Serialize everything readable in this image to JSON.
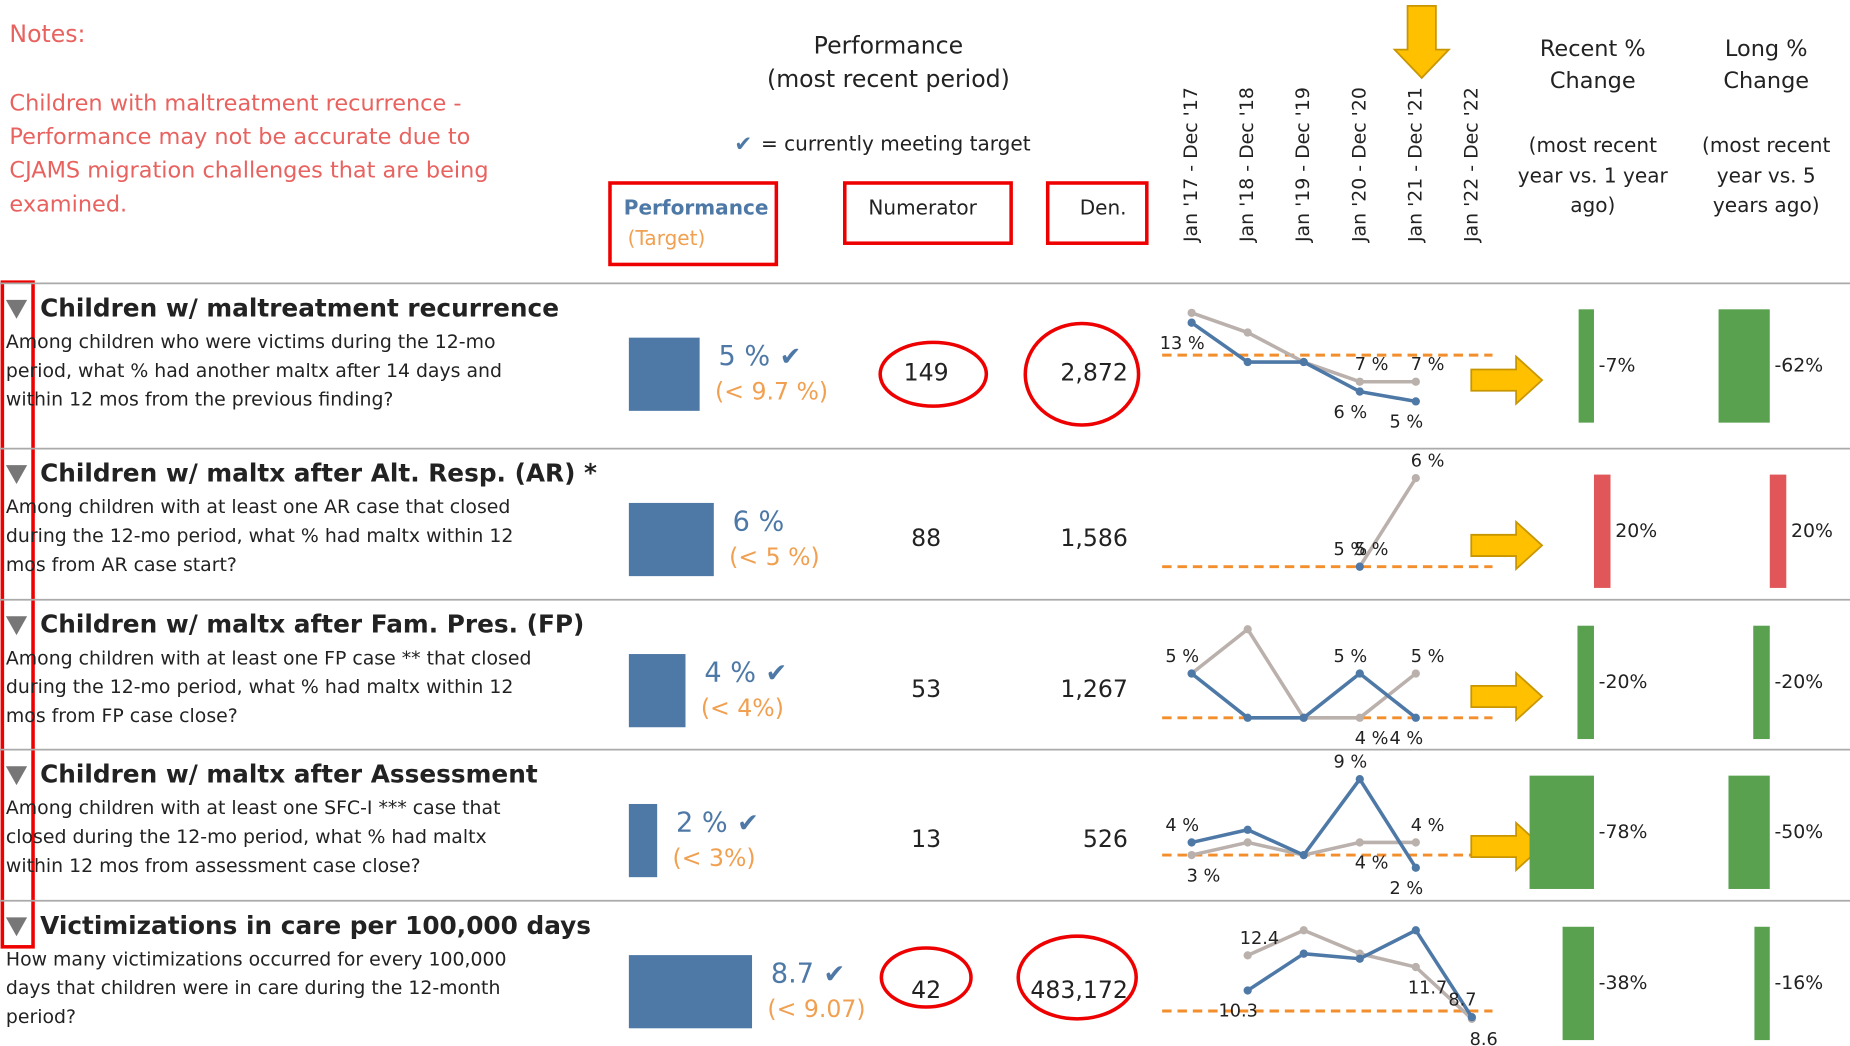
{
  "notes": {
    "title": "Notes:",
    "lines": [
      "Children with maltreatment recurrence -",
      "Performance may not be accurate due to",
      "CJAMS migration challenges that are being",
      "examined."
    ]
  },
  "header": {
    "performance_title": [
      "Performance",
      "(most recent period)"
    ],
    "check": "✔",
    "check_legend": "= currently meeting target",
    "col_performance": "Performance",
    "col_target": "(Target)",
    "col_numerator": "Numerator",
    "col_den": "Den.",
    "periods": [
      "Jan '17 - Dec '17",
      "Jan '18 - Dec '18",
      "Jan '19 - Dec '19",
      "Jan '20 - Dec '20",
      "Jan '21 - Dec '21",
      "Jan '22 - Dec '22"
    ],
    "recent_title": [
      "Recent %",
      "Change"
    ],
    "recent_sub": [
      "(most recent",
      "year vs. 1 year",
      "ago)"
    ],
    "long_title": [
      "Long %",
      "Change"
    ],
    "long_sub": [
      "(most recent",
      "year vs. 5",
      "years ago)"
    ]
  },
  "colors": {
    "performance": "#4e79a7",
    "target": "#f28e2b",
    "current": "#4e79a7",
    "comparison": "#bab0ac",
    "improved": "#59a14f",
    "worsened": "#e15759"
  },
  "rows": [
    {
      "title": "Children w/ maltreatment recurrence",
      "description": [
        "Among children who were victims during the 12-mo",
        "period, what % had another maltx after 14 days and",
        "within 12 mos from the previous finding?"
      ],
      "performance": 5,
      "performance_label": "5 %",
      "meets_target": true,
      "target": 9.7,
      "target_label": "(< 9.7 %)",
      "numerator": 149,
      "denominator": 2872,
      "denominator_label": "2,872",
      "trend": [
        {
          "values": [
            13,
            9,
            9,
            6,
            5,
            null
          ],
          "value_labels": [
            "13 %",
            null,
            null,
            "6 %",
            "5 %",
            null
          ]
        },
        {
          "values": [
            14,
            12,
            9,
            7,
            7,
            null
          ],
          "value_labels": [
            null,
            null,
            null,
            "7 %",
            "7 %",
            null
          ]
        }
      ],
      "recent_change": -7,
      "recent_label": "-7%",
      "long_change": -62,
      "long_label": "-62%"
    },
    {
      "title": "Children w/ maltx after Alt. Resp. (AR) *",
      "description": [
        "Among children with at least one AR case that closed",
        "during the 12-mo period, what % had maltx within 12",
        "mos from AR case start?"
      ],
      "performance": 6,
      "performance_label": "6 %",
      "meets_target": false,
      "target": 5,
      "target_label": "(< 5 %)",
      "numerator": 88,
      "denominator": 1586,
      "denominator_label": "1,586",
      "trend": [
        {
          "values": [
            null,
            null,
            null,
            5,
            null,
            null
          ],
          "value_labels": [
            null,
            null,
            null,
            "5 %",
            null,
            null
          ]
        },
        {
          "values": [
            null,
            null,
            null,
            5,
            6,
            null
          ],
          "value_labels": [
            null,
            null,
            null,
            "5 %",
            "6 %",
            null
          ]
        }
      ],
      "recent_change": 20,
      "recent_label": "20%",
      "long_change": 20,
      "long_label": "20%"
    },
    {
      "title": "Children w/ maltx after Fam. Pres. (FP)",
      "description": [
        "Among children with at least one FP case ** that closed",
        "during the 12-mo period, what % had maltx within 12",
        "mos from FP case close?"
      ],
      "performance": 4,
      "performance_label": "4 %",
      "meets_target": true,
      "target": 4,
      "target_label": "(< 4%)",
      "numerator": 53,
      "denominator": 1267,
      "denominator_label": "1,267",
      "trend": [
        {
          "values": [
            5,
            4,
            4,
            5,
            4,
            null
          ],
          "value_labels": [
            "5 %",
            null,
            null,
            "5 %",
            "4 %",
            null
          ]
        },
        {
          "values": [
            5,
            6,
            4,
            4,
            5,
            null
          ],
          "value_labels": [
            null,
            null,
            null,
            "4 %",
            "5 %",
            null
          ]
        }
      ],
      "recent_change": -20,
      "recent_label": "-20%",
      "long_change": -20,
      "long_label": "-20%"
    },
    {
      "title": "Children w/ maltx after Assessment",
      "description": [
        "Among children with at least one SFC-I *** case that",
        "closed during the 12-mo period, what % had maltx",
        "within 12 mos from assessment case close?"
      ],
      "performance": 2,
      "performance_label": "2 %",
      "meets_target": true,
      "target": 3,
      "target_label": "(< 3%)",
      "numerator": 13,
      "denominator": 526,
      "trend": [
        {
          "values": [
            4,
            5,
            3,
            9,
            2,
            null
          ],
          "value_labels": [
            "4 %",
            null,
            null,
            "9 %",
            "2 %",
            null
          ]
        },
        {
          "values": [
            3,
            4,
            3,
            4,
            4,
            null
          ],
          "value_labels": [
            "3 %",
            null,
            null,
            "4 %",
            "4 %",
            null
          ]
        }
      ],
      "recent_change": -78,
      "recent_label": "-78%",
      "long_change": -50,
      "long_label": "-50%"
    },
    {
      "title": "Victimizations in care per 100,000 days",
      "description": [
        "How many victimizations occurred for every 100,000",
        "days that children were in care during the 12-month",
        "period?"
      ],
      "performance": 8.7,
      "meets_target": true,
      "target": 9.07,
      "target_label": "(< 9.07)",
      "numerator": 42,
      "denominator": 483172,
      "denominator_label": "483,172",
      "trend": [
        {
          "values": [
            null,
            10.3,
            12.5,
            12.2,
            13.9,
            8.7
          ],
          "value_labels": [
            null,
            "10.3",
            null,
            null,
            null,
            "8.7"
          ]
        },
        {
          "values": [
            null,
            12.4,
            13.9,
            12.5,
            11.7,
            8.6
          ],
          "value_labels": [
            null,
            "12.4",
            null,
            null,
            "11.7",
            "8.6"
          ]
        }
      ],
      "recent_change": -38,
      "recent_label": "-38%",
      "long_change": -16,
      "long_label": "-16%"
    }
  ]
}
